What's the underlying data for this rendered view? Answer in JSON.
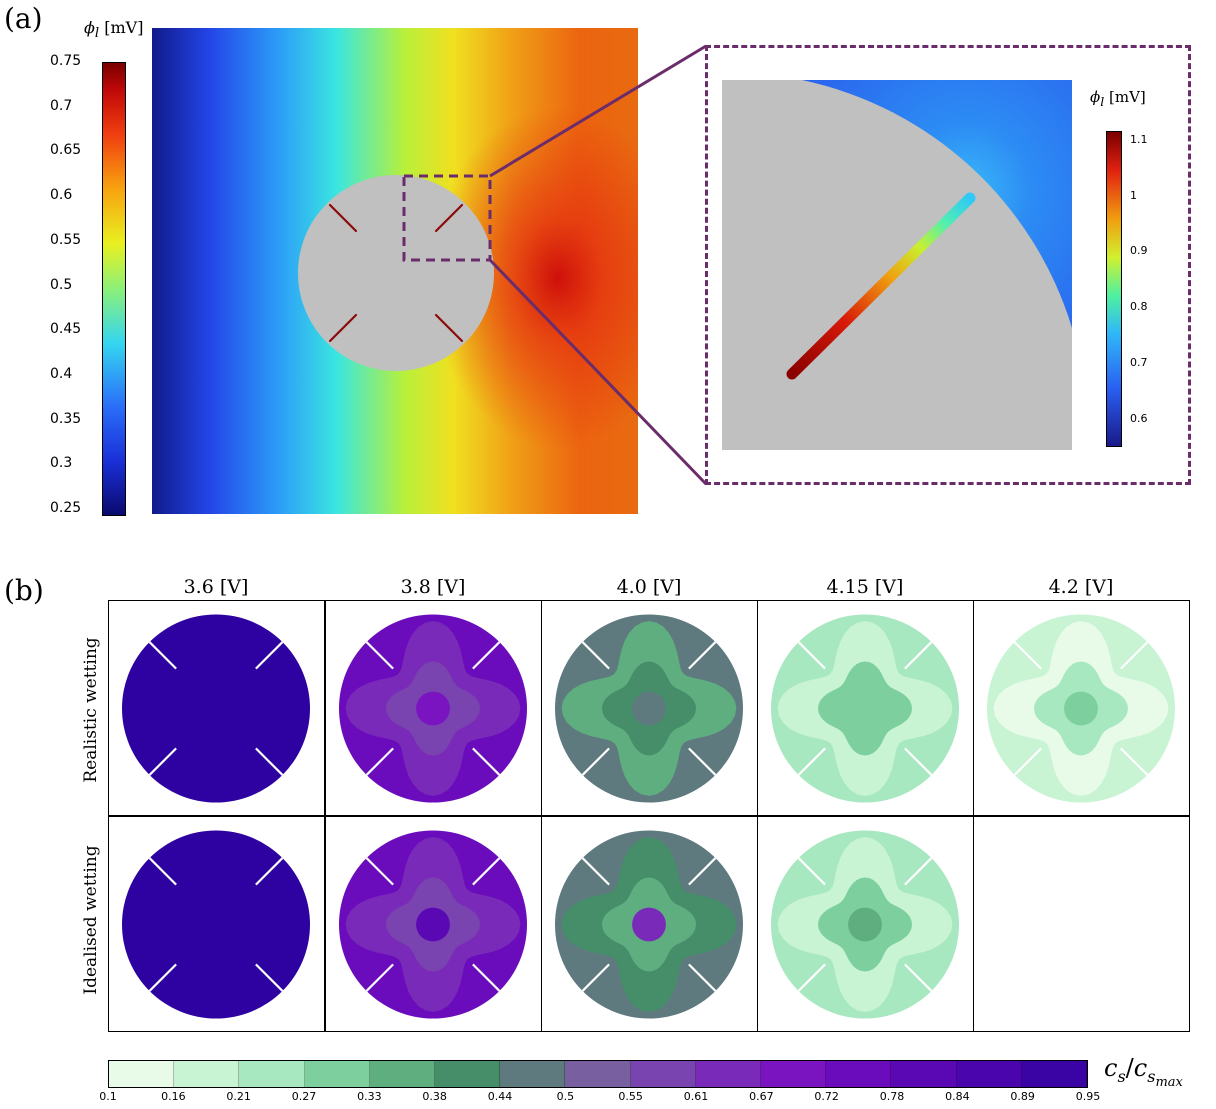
{
  "panel_a": {
    "label": "(a)",
    "colorbar_label": "ϕ",
    "colorbar_sub": "l",
    "colorbar_unit": "[mV]",
    "colorbar_ticks": [
      "0.75",
      "0.7",
      "0.65",
      "0.6",
      "0.55",
      "0.5",
      "0.45",
      "0.4",
      "0.35",
      "0.3",
      "0.25"
    ],
    "inset": {
      "colorbar_label": "ϕ",
      "colorbar_sub": "l",
      "colorbar_unit": "[mV]",
      "colorbar_ticks": [
        "1.1",
        "1",
        "0.9",
        "0.8",
        "0.7",
        "0.6"
      ]
    },
    "colors": {
      "gray": "#c0c0c0",
      "inset_border": "#6b2c6b"
    }
  },
  "panel_b": {
    "label": "(b)",
    "columns": [
      "3.6 [V]",
      "3.8 [V]",
      "4.0 [V]",
      "4.15 [V]",
      "4.2 [V]"
    ],
    "rows": [
      "Realistic wetting",
      "Idealised wetting"
    ],
    "colorbar_ticks": [
      "0.1",
      "0.16",
      "0.21",
      "0.27",
      "0.33",
      "0.38",
      "0.44",
      "0.5",
      "0.55",
      "0.61",
      "0.67",
      "0.72",
      "0.78",
      "0.84",
      "0.89",
      "0.95"
    ],
    "colorbar_label_main": "c",
    "colorbar_label_sub": "s",
    "colorbar_label_slash": "/",
    "colorbar_label_den": "c",
    "colorbar_label_den_sub": "s",
    "colorbar_label_den_subsub": "max",
    "palette": [
      "#e8fbe8",
      "#c8f4d4",
      "#a8e8c0",
      "#7ecf9e",
      "#5fae80",
      "#468e6a",
      "#5e7a7e",
      "#7860a0",
      "#7a44b0",
      "#7a2ab8",
      "#7a14c0",
      "#6a0cbc",
      "#5a08b4",
      "#4a06ac",
      "#3a04a4",
      "#2e02a0"
    ]
  }
}
